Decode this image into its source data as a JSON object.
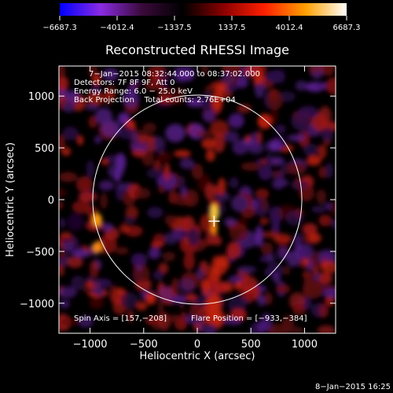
{
  "chart_data": {
    "type": "heatmap",
    "title": "Reconstructed RHESSI Image",
    "xlabel": "Heliocentric X (arcsec)",
    "ylabel": "Heliocentric Y (arcsec)",
    "xlim": [
      -1290,
      1290
    ],
    "ylim": [
      -1290,
      1290
    ],
    "x_ticks": [
      -1000,
      -500,
      0,
      500,
      1000
    ],
    "y_ticks": [
      -1000,
      -500,
      0,
      500,
      1000
    ],
    "x_tick_labels": [
      "−1000",
      "−500",
      "0",
      "500",
      "1000"
    ],
    "y_tick_labels": [
      "−1000",
      "−500",
      "0",
      "500",
      "1000"
    ],
    "colorbar": {
      "range": [
        -6687.3,
        6687.3
      ],
      "ticks": [
        -6687.3,
        -4012.4,
        -1337.5,
        1337.5,
        4012.4,
        6687.3
      ],
      "tick_labels": [
        "−6687.3",
        "−4012.4",
        "−1337.5",
        "1337.5",
        "4012.4",
        "6687.3"
      ],
      "colors": [
        "#0000ff",
        "#8a2be2",
        "#3a0a3a",
        "#000000",
        "#8b0000",
        "#ff2000",
        "#ffa000",
        "#ffffff"
      ]
    },
    "annotations": [
      "7−Jan−2015 08:32:44.000 to 08:37:02.000",
      "Detectors: 7F 8F 9F, Att 0",
      "Energy Range: 6.0 − 25.0 keV",
      "Back Projection    Total counts: 2.76E+04"
    ],
    "footer_left": "Spin Axis = [157,−208]",
    "footer_right": "Flare Position = [−933,−384]",
    "spin_axis": [
      157,
      -208
    ],
    "flare_position": [
      -933,
      -384
    ],
    "solar_limb_radius": 975,
    "grid": false
  },
  "timestamp": "8−Jan−2015 16:25"
}
